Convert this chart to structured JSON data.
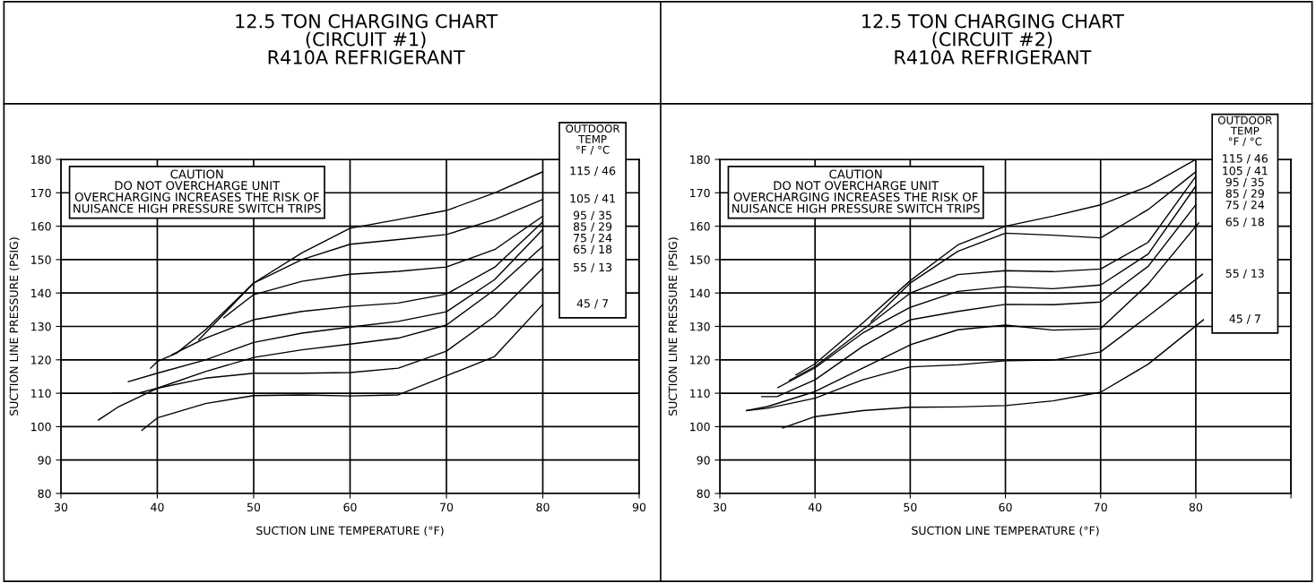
{
  "chart_data": [
    {
      "type": "line",
      "title": "12.5 TON CHARGING CHART\n(CIRCUIT #1)\nR410A REFRIGERANT",
      "xlabel": "SUCTION LINE TEMPERATURE (°F)",
      "ylabel": "SUCTION LINE PRESSURE (PSIG)",
      "legend_title": "OUTDOOR\nTEMP\n°F / °C",
      "legend": "right",
      "grid": true,
      "marker": "none",
      "line_style": "solid",
      "xlim": [
        30,
        90
      ],
      "xticks": [
        30,
        40,
        50,
        60,
        70,
        80,
        90
      ],
      "ylim": [
        80,
        180
      ],
      "yticks": [
        80,
        90,
        100,
        110,
        120,
        130,
        140,
        150,
        160,
        170,
        180
      ],
      "annotations": [
        "CAUTION\nDO NOT OVERCHARGE UNIT\nOVERCHARGING INCREASES THE RISK OF\nNUISANCE HIGH PRESSURE SWITCH TRIPS"
      ],
      "series": [
        {
          "name": "115 / 46",
          "color": "#000000",
          "x": [
            39.3,
            40,
            42,
            45,
            50,
            55,
            60,
            65,
            70,
            75,
            80
          ],
          "values": [
            117.5,
            119.5,
            122,
            129,
            143,
            152,
            159.4,
            162,
            164.7,
            170,
            176.3
          ]
        },
        {
          "name": "105 / 41",
          "color": "#000000",
          "x": [
            44.3,
            47,
            50,
            55,
            60,
            65,
            70,
            75,
            80
          ],
          "values": [
            126,
            134,
            143,
            150,
            154.6,
            156,
            157.5,
            162,
            168
          ]
        },
        {
          "name": "95 / 35",
          "color": "#000000",
          "x": [
            46.9,
            50,
            55,
            60,
            65,
            70,
            75,
            80
          ],
          "values": [
            132.6,
            139.5,
            143.5,
            145.6,
            146.5,
            147.8,
            153,
            163
          ]
        },
        {
          "name": "85 / 29",
          "color": "#000000",
          "x": [
            41.5,
            45,
            50,
            55,
            60,
            65,
            70,
            75,
            80
          ],
          "values": [
            121.5,
            126.5,
            132,
            134.5,
            136,
            137,
            139.7,
            147.7,
            161.3
          ]
        },
        {
          "name": "75 / 24",
          "color": "#000000",
          "x": [
            37,
            40,
            45,
            50,
            55,
            60,
            65,
            70,
            75,
            80
          ],
          "values": [
            113.5,
            116,
            120,
            125.2,
            128,
            129.8,
            131.5,
            134.4,
            144,
            159
          ]
        },
        {
          "name": "65 / 18",
          "color": "#000000",
          "x": [
            33.9,
            36,
            40,
            45,
            50,
            55,
            60,
            65,
            70,
            75,
            80
          ],
          "values": [
            102,
            106,
            111.5,
            116.5,
            120.7,
            123,
            124.7,
            126.5,
            130.4,
            141,
            154
          ]
        },
        {
          "name": "55 / 13",
          "color": "#000000",
          "x": [
            35.3,
            38,
            40,
            45,
            50,
            55,
            60,
            65,
            70,
            75,
            80
          ],
          "values": [
            110,
            110,
            111.5,
            114.5,
            116,
            116,
            116.2,
            117.5,
            122.6,
            133,
            147.4
          ]
        },
        {
          "name": "45 / 7",
          "color": "#000000",
          "x": [
            38.4,
            40,
            45,
            50,
            55,
            60,
            65,
            70,
            75,
            80
          ],
          "values": [
            98.9,
            102.6,
            106.9,
            109.3,
            109.5,
            109.2,
            109.5,
            115.2,
            121,
            136.6
          ]
        }
      ]
    },
    {
      "type": "line",
      "title": "12.5 TON CHARGING CHART\n(CIRCUIT #2)\nR410A REFRIGERANT",
      "xlabel": "SUCTION LINE TEMPERATURE (°F)",
      "ylabel": "SUCTION LINE PRESSURE (PSIG)",
      "legend_title": "OUTDOOR\nTEMP\n°F / °C",
      "legend": "right",
      "grid": true,
      "marker": "none",
      "line_style": "solid",
      "xlim": [
        30,
        90
      ],
      "xticks": [
        30,
        40,
        50,
        60,
        70,
        80,
        {
          "value": 90,
          "label": null
        }
      ],
      "ylim": [
        80,
        180
      ],
      "yticks": [
        80,
        90,
        100,
        110,
        120,
        130,
        140,
        150,
        160,
        170,
        180
      ],
      "annotations": [
        "CAUTION\nDO NOT OVERCHARGE UNIT\nOVERCHARGING INCREASES THE RISK OF\nNUISANCE HIGH PRESSURE SWITCH TRIPS"
      ],
      "series": [
        {
          "name": "115 / 46",
          "color": "#000000",
          "x": [
            38,
            40,
            45,
            50,
            55,
            60,
            65,
            70,
            75,
            80
          ],
          "values": [
            115.5,
            118.8,
            131,
            143.7,
            154.4,
            160,
            163,
            166.4,
            171.9,
            180
          ]
        },
        {
          "name": "105 / 41",
          "color": "#000000",
          "x": [
            45.9,
            50,
            55,
            60,
            65,
            70,
            75,
            80
          ],
          "values": [
            131.5,
            143,
            152.5,
            157.9,
            157.3,
            156.5,
            165,
            176.3
          ]
        },
        {
          "name": "95 / 35",
          "color": "#000000",
          "x": [
            37.3,
            40,
            45,
            50,
            55,
            60,
            65,
            70,
            75,
            80
          ],
          "values": [
            113.8,
            118,
            129,
            140,
            145.5,
            146.7,
            146.4,
            147.2,
            155.2,
            174.9
          ]
        },
        {
          "name": "85 / 29",
          "color": "#000000",
          "x": [
            36.1,
            40,
            45,
            50,
            55,
            60,
            65,
            70,
            75,
            80
          ],
          "values": [
            111.7,
            117.6,
            128,
            135.7,
            140.5,
            141.9,
            141.3,
            142.4,
            151.7,
            172
          ]
        },
        {
          "name": "75 / 24",
          "color": "#000000",
          "x": [
            34.4,
            36,
            40,
            45,
            50,
            55,
            60,
            65,
            70,
            75,
            80
          ],
          "values": [
            109,
            109,
            114,
            124,
            132,
            134.5,
            136.6,
            136.5,
            137.3,
            148,
            166.4
          ]
        },
        {
          "name": "65 / 18",
          "color": "#000000",
          "x": [
            32.8,
            35,
            40,
            45,
            50,
            55,
            60,
            65,
            70,
            75,
            80.3
          ],
          "values": [
            104.8,
            106,
            110.5,
            117.5,
            124.5,
            129,
            130.4,
            128.9,
            129.3,
            142.7,
            161
          ]
        },
        {
          "name": "55 / 13",
          "color": "#000000",
          "x": [
            32.8,
            35,
            40,
            45,
            50,
            55,
            60,
            65,
            70,
            75,
            80.7
          ],
          "values": [
            104.8,
            105.5,
            108.5,
            114,
            117.9,
            118.5,
            119.7,
            119.9,
            122.4,
            133.1,
            145.6
          ]
        },
        {
          "name": "45 / 7",
          "color": "#000000",
          "x": [
            36.6,
            40,
            45,
            50,
            55,
            60,
            65,
            70,
            75,
            80.8
          ],
          "values": [
            99.6,
            103,
            104.8,
            105.8,
            105.9,
            106.3,
            107.7,
            110.3,
            118.7,
            132
          ]
        }
      ]
    }
  ]
}
